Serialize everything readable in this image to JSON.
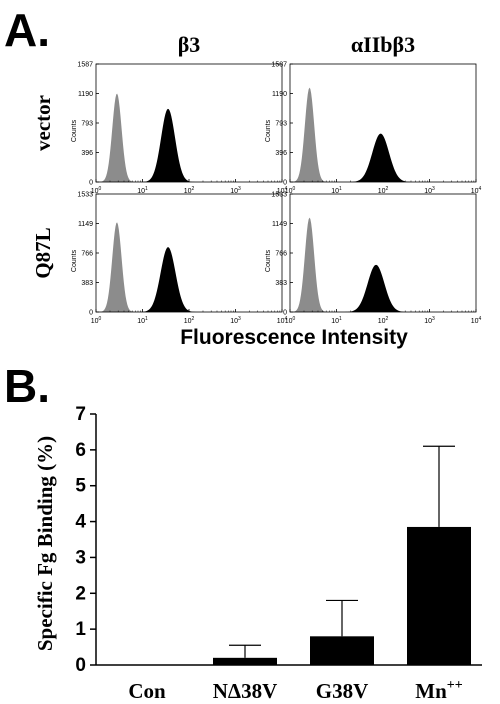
{
  "panel_a_label": "A.",
  "panel_b_label": "B.",
  "chart_data": [
    {
      "type": "area",
      "panel": "A",
      "col_titles": [
        "β3",
        "αIIbβ3"
      ],
      "row_titles": [
        "vector",
        "Q87L"
      ],
      "xlabel": "Fluorescence Intensity",
      "ylabel": "Counts",
      "x_scale": "log",
      "x_ticks": [
        {
          "base": "10",
          "exp": "0"
        },
        {
          "base": "10",
          "exp": "1"
        },
        {
          "base": "10",
          "exp": "2"
        },
        {
          "base": "10",
          "exp": "3"
        },
        {
          "base": "10",
          "exp": "4"
        }
      ],
      "panels": [
        {
          "row": 0,
          "col": 0,
          "yticks": [
            "0",
            "396",
            "793",
            "1190",
            "1587"
          ],
          "ymax": 1587,
          "series": [
            {
              "color": "#8c8c8c",
              "center": 0.45,
              "width": 0.1,
              "peak": 0.75
            },
            {
              "color": "#000000",
              "center": 1.55,
              "width": 0.15,
              "peak": 0.62
            }
          ]
        },
        {
          "row": 0,
          "col": 1,
          "yticks": [
            "0",
            "396",
            "793",
            "1190",
            "1587"
          ],
          "ymax": 1587,
          "series": [
            {
              "color": "#8c8c8c",
              "center": 0.42,
              "width": 0.1,
              "peak": 0.8
            },
            {
              "color": "#000000",
              "center": 1.95,
              "width": 0.18,
              "peak": 0.41
            }
          ]
        },
        {
          "row": 1,
          "col": 0,
          "yticks": [
            "0",
            "383",
            "766",
            "1149",
            "1533"
          ],
          "ymax": 1533,
          "series": [
            {
              "color": "#8c8c8c",
              "center": 0.45,
              "width": 0.1,
              "peak": 0.76
            },
            {
              "color": "#000000",
              "center": 1.55,
              "width": 0.16,
              "peak": 0.55
            }
          ]
        },
        {
          "row": 1,
          "col": 1,
          "yticks": [
            "0",
            "383",
            "766",
            "1149",
            "1533"
          ],
          "ymax": 1533,
          "series": [
            {
              "color": "#8c8c8c",
              "center": 0.42,
              "width": 0.1,
              "peak": 0.8
            },
            {
              "color": "#000000",
              "center": 1.85,
              "width": 0.18,
              "peak": 0.4
            }
          ]
        }
      ]
    },
    {
      "type": "bar",
      "panel": "B",
      "categories": [
        "Con",
        "NΔ38V",
        "G38V",
        "Mn"
      ],
      "category_superscripts": [
        "",
        "",
        "",
        "++"
      ],
      "values": [
        0,
        0.2,
        0.8,
        3.85
      ],
      "errors": [
        0,
        0.35,
        1.0,
        2.25
      ],
      "ylabel": "Specific Fg Binding (%)",
      "ylim": [
        0,
        7
      ],
      "yticks": [
        "0",
        "1",
        "2",
        "3",
        "4",
        "5",
        "6",
        "7"
      ],
      "bar_color": "#000000"
    }
  ]
}
